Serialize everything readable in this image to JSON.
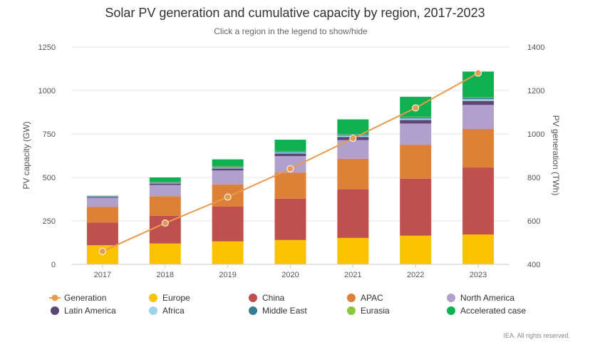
{
  "chart_data": {
    "type": "bar",
    "title": "Solar PV generation and cumulative capacity by region, 2017-2023",
    "subtitle": "Click a region in the legend to show/hide",
    "categories": [
      "2017",
      "2018",
      "2019",
      "2020",
      "2021",
      "2022",
      "2023"
    ],
    "ylabel_left": "PV capacity (GW)",
    "ylabel_right": "PV generation (TWh)",
    "ylim_left": [
      0,
      1250
    ],
    "yticks_left": [
      "0",
      "250",
      "500",
      "750",
      "1000",
      "1250"
    ],
    "ylim_right": [
      400,
      1400
    ],
    "yticks_right": [
      "400",
      "600",
      "800",
      "1000",
      "1200",
      "1400"
    ],
    "series": [
      {
        "name": "Europe",
        "color": "#fbc200",
        "values": [
          110,
          120,
          132,
          140,
          152,
          165,
          172
        ]
      },
      {
        "name": "China",
        "color": "#c0504d",
        "values": [
          130,
          160,
          200,
          238,
          280,
          328,
          385
        ]
      },
      {
        "name": "APAC",
        "color": "#dd8136",
        "values": [
          90,
          112,
          128,
          150,
          175,
          195,
          222
        ]
      },
      {
        "name": "North America",
        "color": "#b1a0cb",
        "values": [
          53,
          65,
          80,
          95,
          108,
          122,
          138
        ]
      },
      {
        "name": "Latin America",
        "color": "#5b4677",
        "values": [
          5,
          8,
          12,
          15,
          18,
          20,
          23
        ]
      },
      {
        "name": "Africa",
        "color": "#9dd3e6",
        "values": [
          3,
          4,
          5,
          6,
          8,
          9,
          10
        ]
      },
      {
        "name": "Middle East",
        "color": "#357e94",
        "values": [
          3,
          4,
          5,
          6,
          6,
          7,
          8
        ]
      },
      {
        "name": "Eurasia",
        "color": "#8cc63f",
        "values": [
          1,
          2,
          2,
          2,
          2,
          3,
          3
        ]
      },
      {
        "name": "Accelerated case",
        "color": "#0fb050",
        "values": [
          0,
          25,
          40,
          65,
          85,
          115,
          148
        ]
      }
    ],
    "line_series": {
      "name": "Generation",
      "color": "#e89a4f",
      "axis": "right",
      "values": [
        460,
        590,
        710,
        840,
        980,
        1120,
        1280
      ]
    },
    "legend_order": [
      "Generation",
      "Europe",
      "China",
      "APAC",
      "North America",
      "Latin America",
      "Africa",
      "Middle East",
      "Eurasia",
      "Accelerated case"
    ],
    "legend_position": "bottom",
    "grid": true
  },
  "credits": "IEA. All rights reserved."
}
